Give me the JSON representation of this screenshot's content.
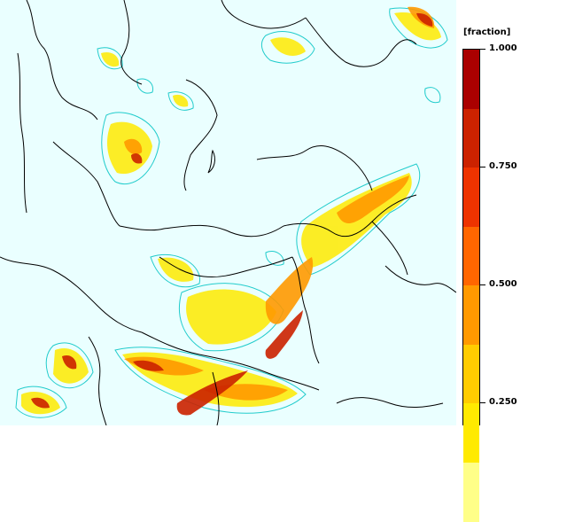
{
  "legend": {
    "unit": "[fraction]",
    "ticks": [
      {
        "label": "1.000",
        "value": 1.0
      },
      {
        "label": "0.750",
        "value": 0.75
      },
      {
        "label": "0.500",
        "value": 0.5
      },
      {
        "label": "0.250",
        "value": 0.25
      }
    ],
    "colors": [
      "#ffff88",
      "#ffea00",
      "#ffcc00",
      "#ff9900",
      "#ff6600",
      "#ee3300",
      "#cc2200",
      "#aa0000"
    ],
    "value_top": 1.0,
    "value_step": 0.125
  },
  "map": {
    "background_color": "#eaffff",
    "contour_color": "#22cccc",
    "border_color": "#000000"
  }
}
